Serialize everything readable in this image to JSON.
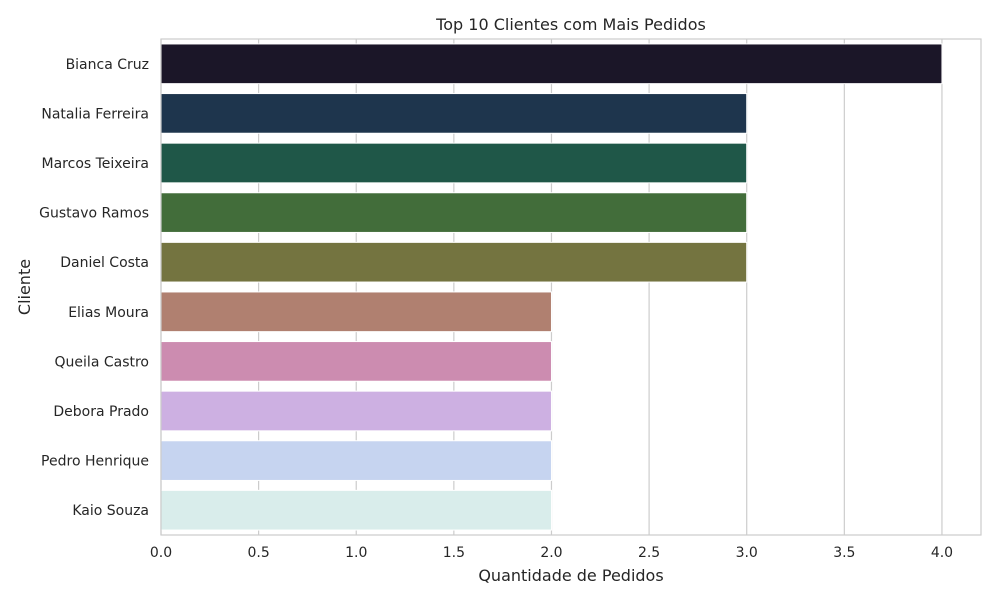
{
  "chart_data": {
    "type": "bar",
    "orientation": "horizontal",
    "title": "Top 10 Clientes com Mais Pedidos",
    "xlabel": "Quantidade de Pedidos",
    "ylabel": "Cliente",
    "xlim": [
      0,
      4.2
    ],
    "x_ticks": [
      "0.0",
      "0.5",
      "1.0",
      "1.5",
      "2.0",
      "2.5",
      "3.0",
      "3.5",
      "4.0"
    ],
    "grid": true,
    "categories": [
      "Bianca Cruz",
      "Natalia Ferreira",
      "Marcos Teixeira",
      "Gustavo Ramos",
      "Daniel Costa",
      "Elias Moura",
      "Queila Castro",
      "Debora Prado",
      "Pedro Henrique",
      "Kaio Souza"
    ],
    "values": [
      4,
      3,
      3,
      3,
      3,
      2,
      2,
      2,
      2,
      2
    ],
    "colors": [
      "#1b1628",
      "#1e354d",
      "#1f5748",
      "#426d3a",
      "#747440",
      "#b08070",
      "#cc8cb0",
      "#cdb0e2",
      "#c6d4f0",
      "#d9edeb"
    ]
  }
}
